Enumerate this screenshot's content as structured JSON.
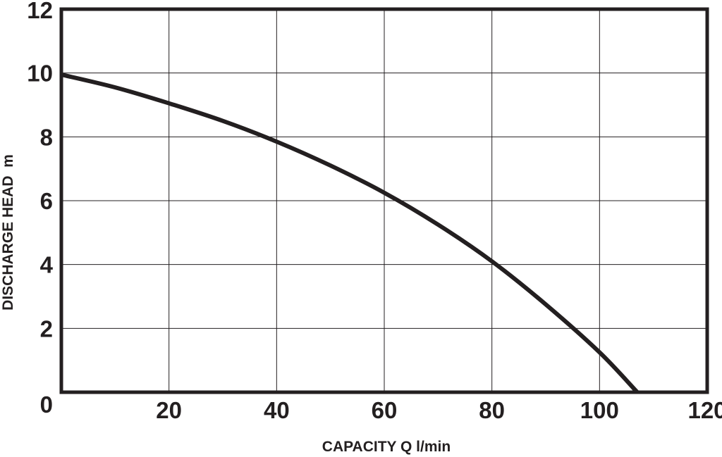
{
  "chart_data": {
    "type": "line",
    "title": "",
    "xlabel": "CAPACITY Q l/min",
    "ylabel": "DISCHARGE HEAD  m",
    "xlim": [
      0,
      120
    ],
    "ylim": [
      0,
      12
    ],
    "x_ticks": [
      0,
      20,
      40,
      60,
      80,
      100,
      120
    ],
    "y_ticks": [
      0,
      2,
      4,
      6,
      8,
      10,
      12
    ],
    "x_tick_labels": [
      "20",
      "40",
      "60",
      "80",
      "100",
      "120"
    ],
    "y_tick_labels": [
      "0",
      "2",
      "4",
      "6",
      "8",
      "10",
      "12"
    ],
    "grid": true,
    "legend": "none",
    "colors": {
      "line": "#231f20",
      "grid": "#231f20",
      "frame": "#231f20"
    },
    "series": [
      {
        "x": [
          0,
          10,
          20,
          30,
          40,
          50,
          60,
          70,
          80,
          90,
          100,
          107
        ],
        "y": [
          9.95,
          9.55,
          9.05,
          8.5,
          7.85,
          7.1,
          6.25,
          5.25,
          4.1,
          2.75,
          1.25,
          0.0
        ]
      }
    ]
  }
}
